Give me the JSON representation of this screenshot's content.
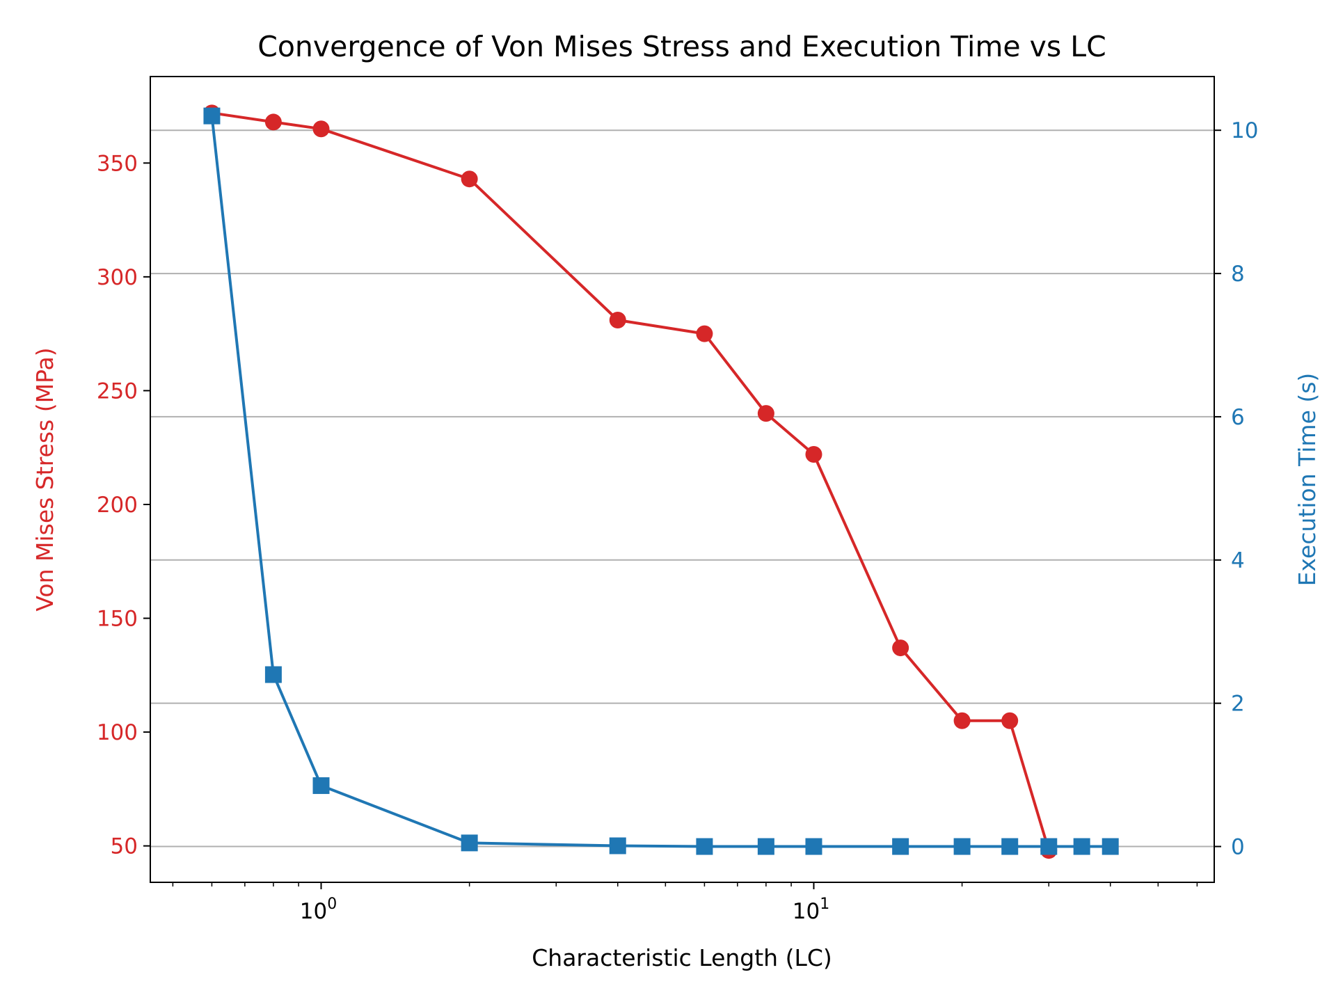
{
  "chart_data": {
    "type": "line",
    "title": "Convergence of Von Mises Stress and Execution Time vs LC",
    "xlabel": "Characteristic Length (LC)",
    "x_scale": "log",
    "xlim": [
      0.45,
      65
    ],
    "x_major_ticks": [
      1,
      10
    ],
    "x_tick_labels": [
      "10",
      "10"
    ],
    "x_tick_label_exponents": [
      "0",
      "1"
    ],
    "y_left": {
      "label": "Von Mises Stress (MPa)",
      "color": "#d62728",
      "ylim": [
        34,
        388
      ],
      "ticks": [
        50,
        100,
        150,
        200,
        250,
        300,
        350
      ],
      "tick_labels": [
        "50",
        "100",
        "150",
        "200",
        "250",
        "300",
        "350"
      ]
    },
    "y_right": {
      "label": "Execution Time (s)",
      "color": "#1f77b4",
      "ylim": [
        -0.5,
        10.75
      ],
      "ticks": [
        0,
        2,
        4,
        6,
        8,
        10
      ],
      "tick_labels": [
        "0",
        "2",
        "4",
        "6",
        "8",
        "10"
      ]
    },
    "grid": "horizontal lines at right-axis ticks",
    "series": [
      {
        "axis": "left",
        "color": "#d62728",
        "marker": "circle",
        "x": [
          0.6,
          0.8,
          1,
          2,
          4,
          6,
          8,
          10,
          15,
          20,
          25,
          30
        ],
        "y": [
          372,
          368,
          365,
          343,
          281,
          275,
          240,
          222,
          137,
          105,
          105,
          48
        ]
      },
      {
        "axis": "right",
        "color": "#1f77b4",
        "marker": "square",
        "x": [
          0.6,
          0.8,
          1,
          2,
          4,
          6,
          8,
          10,
          15,
          20,
          25,
          30,
          35,
          40
        ],
        "y": [
          10.2,
          2.4,
          0.85,
          0.05,
          0.01,
          0.0,
          0.0,
          0.0,
          0.0,
          0.0,
          0.0,
          0.0,
          0.0,
          0.0
        ]
      }
    ]
  }
}
